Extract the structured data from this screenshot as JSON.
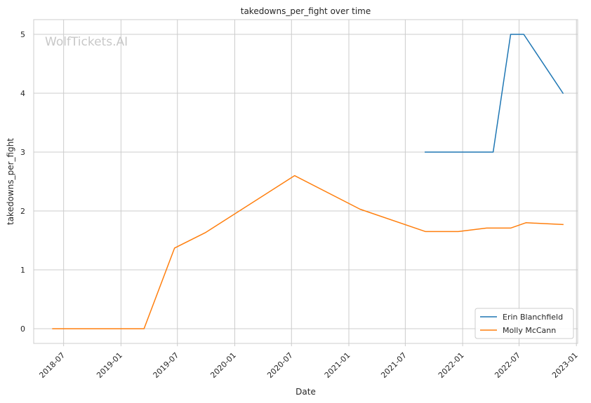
{
  "chart_data": {
    "type": "line",
    "title": "takedowns_per_fight over time",
    "xlabel": "Date",
    "ylabel": "takedowns_per_fight",
    "watermark": "WolfTickets.AI",
    "xlim": [
      "2018-03-27",
      "2023-01-05"
    ],
    "ylim": [
      -0.25,
      5.25
    ],
    "x_ticks": [
      "2018-07-01",
      "2019-01-01",
      "2019-07-01",
      "2020-01-01",
      "2020-07-01",
      "2021-01-01",
      "2021-07-01",
      "2022-01-01",
      "2022-07-01",
      "2023-01-01"
    ],
    "x_tick_labels": [
      "2018-07",
      "2019-01",
      "2019-07",
      "2020-01",
      "2020-07",
      "2021-01",
      "2021-07",
      "2022-01",
      "2022-07",
      "2023-01"
    ],
    "y_ticks": [
      0,
      1,
      2,
      3,
      4,
      5
    ],
    "y_tick_labels": [
      "0",
      "1",
      "2",
      "3",
      "4",
      "5"
    ],
    "grid": true,
    "legend_position": "bottom-right",
    "series": [
      {
        "name": "Erin Blanchfield",
        "color": "#1f77b4",
        "points": [
          {
            "x": "2021-09-03",
            "y": 3.0
          },
          {
            "x": "2022-04-09",
            "y": 3.0
          },
          {
            "x": "2022-06-04",
            "y": 5.0
          },
          {
            "x": "2022-07-16",
            "y": 5.0
          },
          {
            "x": "2022-11-19",
            "y": 4.0
          }
        ]
      },
      {
        "name": "Molly McCann",
        "color": "#ff7f0e",
        "points": [
          {
            "x": "2018-05-27",
            "y": 0.0
          },
          {
            "x": "2019-03-16",
            "y": 0.0
          },
          {
            "x": "2019-06-22",
            "y": 1.37
          },
          {
            "x": "2019-09-28",
            "y": 1.63
          },
          {
            "x": "2020-07-11",
            "y": 2.6
          },
          {
            "x": "2021-02-06",
            "y": 2.03
          },
          {
            "x": "2021-09-04",
            "y": 1.65
          },
          {
            "x": "2021-12-18",
            "y": 1.65
          },
          {
            "x": "2022-03-19",
            "y": 1.71
          },
          {
            "x": "2022-06-04",
            "y": 1.71
          },
          {
            "x": "2022-07-23",
            "y": 1.8
          },
          {
            "x": "2022-11-19",
            "y": 1.77
          }
        ]
      }
    ]
  }
}
